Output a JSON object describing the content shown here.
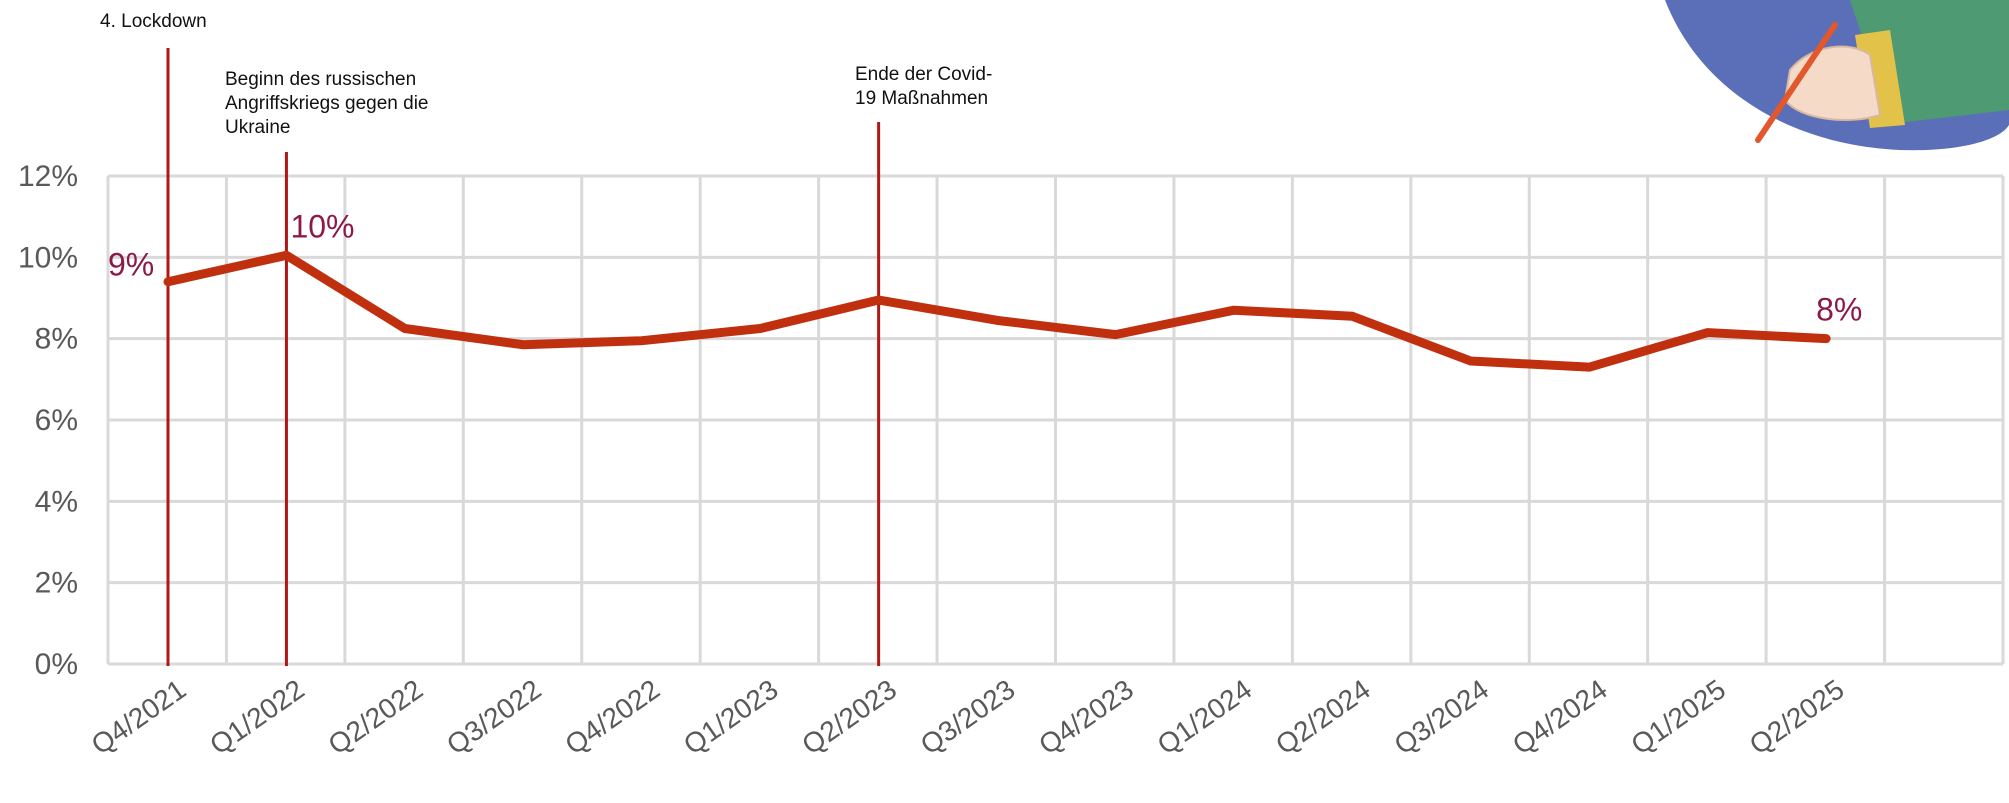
{
  "chart_data": {
    "type": "line",
    "categories": [
      "Q4/2021",
      "Q1/2022",
      "Q2/2022",
      "Q3/2022",
      "Q4/2022",
      "Q1/2023",
      "Q2/2023",
      "Q3/2023",
      "Q4/2023",
      "Q1/2024",
      "Q2/2024",
      "Q3/2024",
      "Q4/2024",
      "Q1/2025",
      "Q2/2025"
    ],
    "series": [
      {
        "values": [
          9.4,
          10.05,
          8.25,
          7.85,
          7.95,
          8.25,
          8.95,
          8.45,
          8.1,
          8.7,
          8.55,
          7.45,
          7.3,
          8.15,
          8.0
        ]
      }
    ],
    "ylim": [
      0,
      12
    ],
    "yticks": [
      "0%",
      "2%",
      "4%",
      "6%",
      "8%",
      "10%",
      "12%"
    ],
    "grid": true,
    "xlabel": "",
    "ylabel": "",
    "data_labels": [
      {
        "index": 0,
        "text": "9%"
      },
      {
        "index": 1,
        "text": "10%"
      },
      {
        "index": 14,
        "text": "8%"
      }
    ],
    "annotations": [
      {
        "at": "Q4/2021",
        "lines": [
          "4. Lockdown"
        ]
      },
      {
        "at": "Q1/2022",
        "lines": [
          "Beginn des russischen",
          "Angriffskriegs gegen die",
          "Ukraine"
        ]
      },
      {
        "at": "Q2/2023",
        "lines": [
          "Ende der Covid-",
          "19 Maßnahmen"
        ]
      }
    ],
    "colors": {
      "line": "#c0300f",
      "event_line": "#b01818",
      "label": "#8b1a4a",
      "grid": "#d9d9d9"
    }
  }
}
